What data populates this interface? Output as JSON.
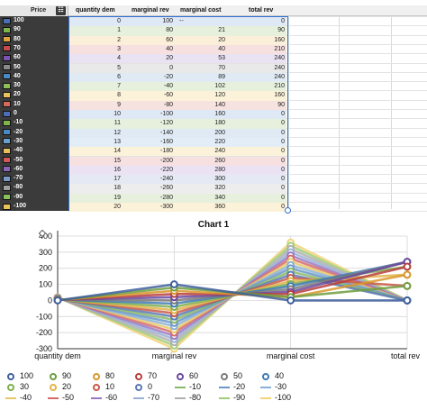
{
  "sheet": {
    "price_header": "Price",
    "filter_icon": "list-icon",
    "columns": [
      "quantity dem",
      "marginal rev",
      "marginal cost",
      "total rev"
    ],
    "price_rows": [
      {
        "label": "100",
        "color": "#4a6fb5"
      },
      {
        "label": "90",
        "color": "#7fb54a"
      },
      {
        "label": "80",
        "color": "#e0a53a"
      },
      {
        "label": "70",
        "color": "#c94a4a"
      },
      {
        "label": "60",
        "color": "#7a54b0"
      },
      {
        "label": "50",
        "color": "#8a8a8a"
      },
      {
        "label": "40",
        "color": "#4a89c4"
      },
      {
        "label": "30",
        "color": "#8fbf5a"
      },
      {
        "label": "20",
        "color": "#e9c25a"
      },
      {
        "label": "10",
        "color": "#d66a5a"
      },
      {
        "label": "0",
        "color": "#4a6fb5"
      },
      {
        "label": "-10",
        "color": "#7fb54a"
      },
      {
        "label": "-20",
        "color": "#4a89c4"
      },
      {
        "label": "-30",
        "color": "#6aa0d0"
      },
      {
        "label": "-40",
        "color": "#e7c15a"
      },
      {
        "label": "-50",
        "color": "#d25a5a"
      },
      {
        "label": "-60",
        "color": "#8a64b8"
      },
      {
        "label": "-70",
        "color": "#7a9ac8"
      },
      {
        "label": "-80",
        "color": "#a0a0a0"
      },
      {
        "label": "-90",
        "color": "#8ac25a"
      },
      {
        "label": "-100",
        "color": "#e9c25a"
      }
    ],
    "rows": [
      {
        "q": "0",
        "mr": "100",
        "mc": "--",
        "tr": "0",
        "bg": "#dfe8f5"
      },
      {
        "q": "1",
        "mr": "80",
        "mc": "21",
        "tr": "90",
        "bg": "#e6f0dc"
      },
      {
        "q": "2",
        "mr": "60",
        "mc": "20",
        "tr": "160",
        "bg": "#fbefd9"
      },
      {
        "q": "3",
        "mr": "40",
        "mc": "40",
        "tr": "210",
        "bg": "#f6e0e0"
      },
      {
        "q": "4",
        "mr": "20",
        "mc": "53",
        "tr": "240",
        "bg": "#e9e2f2"
      },
      {
        "q": "5",
        "mr": "0",
        "mc": "70",
        "tr": "240",
        "bg": "#e9e9e9"
      },
      {
        "q": "6",
        "mr": "-20",
        "mc": "89",
        "tr": "240",
        "bg": "#dfeaf5"
      },
      {
        "q": "7",
        "mr": "-40",
        "mc": "102",
        "tr": "210",
        "bg": "#e6f0dc"
      },
      {
        "q": "8",
        "mr": "-60",
        "mc": "120",
        "tr": "160",
        "bg": "#fbf2d9"
      },
      {
        "q": "9",
        "mr": "-80",
        "mc": "140",
        "tr": "90",
        "bg": "#f6e2de"
      },
      {
        "q": "10",
        "mr": "-100",
        "mc": "160",
        "tr": "0",
        "bg": "#dfe8f5"
      },
      {
        "q": "11",
        "mr": "-120",
        "mc": "180",
        "tr": "0",
        "bg": "#e6f0dc"
      },
      {
        "q": "12",
        "mr": "-140",
        "mc": "200",
        "tr": "0",
        "bg": "#dfeaf5"
      },
      {
        "q": "13",
        "mr": "-160",
        "mc": "220",
        "tr": "0",
        "bg": "#e3edf7"
      },
      {
        "q": "14",
        "mr": "-180",
        "mc": "240",
        "tr": "0",
        "bg": "#fbf2d9"
      },
      {
        "q": "15",
        "mr": "-200",
        "mc": "260",
        "tr": "0",
        "bg": "#f6e0e0"
      },
      {
        "q": "16",
        "mr": "-220",
        "mc": "280",
        "tr": "0",
        "bg": "#ebe3f3"
      },
      {
        "q": "17",
        "mr": "-240",
        "mc": "300",
        "tr": "0",
        "bg": "#e4e9f3"
      },
      {
        "q": "18",
        "mr": "-260",
        "mc": "320",
        "tr": "0",
        "bg": "#ededed"
      },
      {
        "q": "19",
        "mr": "-280",
        "mc": "340",
        "tr": "0",
        "bg": "#e6f0dc"
      },
      {
        "q": "20",
        "mr": "-300",
        "mc": "360",
        "tr": "0",
        "bg": "#fbf2d9"
      }
    ]
  },
  "chart_data": {
    "type": "line",
    "title": "Chart 1",
    "categories": [
      "quantity dem",
      "marginal rev",
      "marginal cost",
      "total rev"
    ],
    "ylim": [
      -300,
      400
    ],
    "yticks": [
      "400",
      "300",
      "200",
      "100",
      "0",
      "-100",
      "-200",
      "-300"
    ],
    "grid": true,
    "legend_position": "bottom",
    "series": [
      {
        "name": "100",
        "color": "#3e5f9e",
        "values": [
          0,
          100,
          0,
          0
        ]
      },
      {
        "name": "90",
        "color": "#6e9e3e",
        "values": [
          1,
          80,
          21,
          90
        ]
      },
      {
        "name": "80",
        "color": "#d9962e",
        "values": [
          2,
          60,
          20,
          160
        ]
      },
      {
        "name": "70",
        "color": "#b83e3e",
        "values": [
          3,
          40,
          40,
          210
        ]
      },
      {
        "name": "60",
        "color": "#6a48a0",
        "values": [
          4,
          20,
          53,
          240
        ]
      },
      {
        "name": "50",
        "color": "#7a7a7a",
        "values": [
          5,
          0,
          70,
          240
        ]
      },
      {
        "name": "40",
        "color": "#3f7ab5",
        "values": [
          6,
          -20,
          89,
          240
        ]
      },
      {
        "name": "30",
        "color": "#7fae4e",
        "values": [
          7,
          -40,
          102,
          210
        ]
      },
      {
        "name": "20",
        "color": "#e2b44a",
        "values": [
          8,
          -60,
          120,
          160
        ]
      },
      {
        "name": "10",
        "color": "#c85a4a",
        "values": [
          9,
          -80,
          140,
          90
        ]
      },
      {
        "name": "0",
        "color": "#5a78b5",
        "values": [
          10,
          -100,
          160,
          0
        ]
      },
      {
        "name": "-10",
        "color": "#8ab86a",
        "values": [
          11,
          -120,
          180,
          0
        ]
      },
      {
        "name": "-20",
        "color": "#6a96c8",
        "values": [
          12,
          -140,
          200,
          0
        ]
      },
      {
        "name": "-30",
        "color": "#8ab0d8",
        "values": [
          13,
          -160,
          220,
          0
        ]
      },
      {
        "name": "-40",
        "color": "#e8c866",
        "values": [
          14,
          -180,
          240,
          0
        ]
      },
      {
        "name": "-50",
        "color": "#d66a6a",
        "values": [
          15,
          -200,
          260,
          0
        ]
      },
      {
        "name": "-60",
        "color": "#9a78c4",
        "values": [
          16,
          -220,
          280,
          0
        ]
      },
      {
        "name": "-70",
        "color": "#9ab0d4",
        "values": [
          17,
          -240,
          300,
          0
        ]
      },
      {
        "name": "-80",
        "color": "#b0b0b0",
        "values": [
          18,
          -260,
          320,
          0
        ]
      },
      {
        "name": "-90",
        "color": "#a0cc7a",
        "values": [
          19,
          -280,
          340,
          0
        ]
      },
      {
        "name": "-100",
        "color": "#f0d47a",
        "values": [
          20,
          -300,
          360,
          0
        ]
      }
    ]
  }
}
